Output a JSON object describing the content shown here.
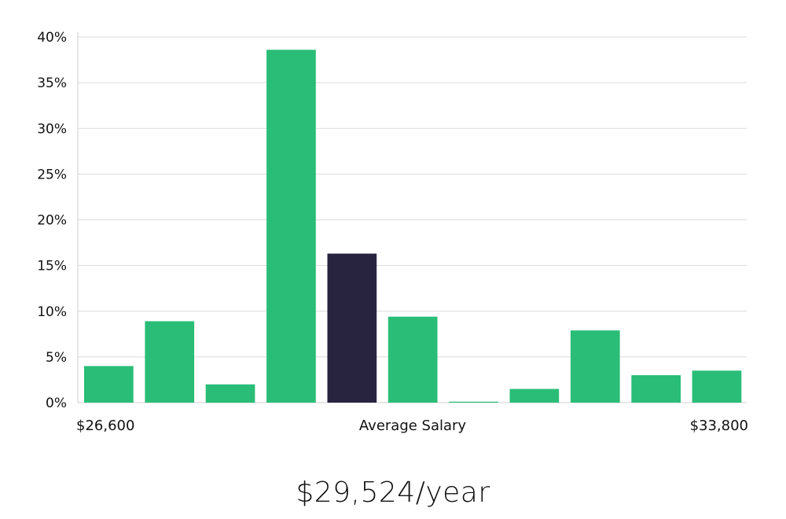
{
  "chart_data": {
    "type": "bar",
    "y_ticks": [
      "0%",
      "5%",
      "10%",
      "15%",
      "20%",
      "25%",
      "30%",
      "35%",
      "40%"
    ],
    "ylim": [
      0,
      40
    ],
    "values": [
      4.0,
      8.9,
      2.0,
      38.6,
      16.3,
      9.4,
      0.1,
      1.5,
      7.9,
      3.0,
      3.5
    ],
    "highlight_index": 4,
    "x_min_label": "$26,600",
    "x_center_label": "Average Salary",
    "x_max_label": "$33,800",
    "grid": true,
    "colors": {
      "bar": "#2abd77",
      "highlight": "#28233f",
      "grid": "#dcdcdc",
      "axis": "#cfcfcf"
    }
  },
  "salary_text": "$29,524/year"
}
